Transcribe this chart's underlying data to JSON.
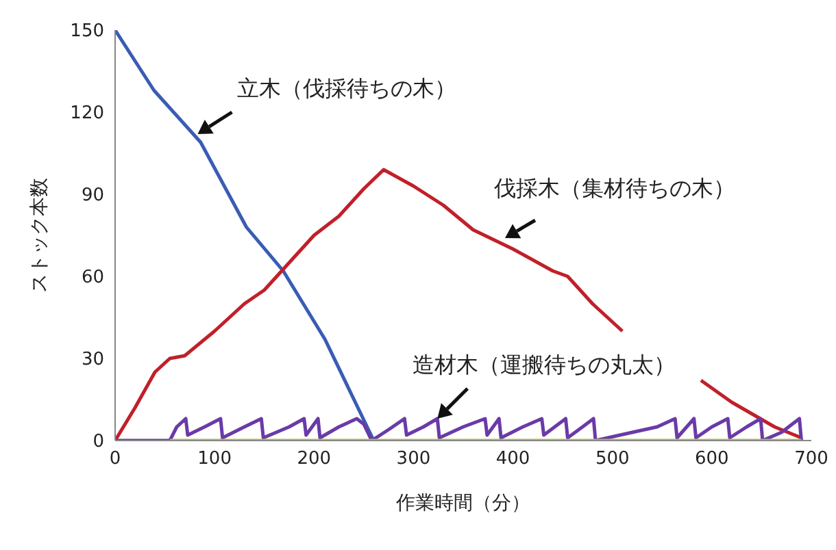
{
  "chart_data": {
    "type": "line",
    "xlabel": "作業時間（分）",
    "ylabel": "ストック本数",
    "xlim": [
      0,
      700
    ],
    "xticks": [
      0,
      100,
      200,
      300,
      400,
      500,
      600,
      700
    ],
    "ylim": [
      0,
      150
    ],
    "yticks": [
      0,
      30,
      60,
      90,
      120,
      150
    ],
    "grid": false,
    "legend": false,
    "marker": "none",
    "line_style": "solid",
    "series": [
      {
        "color": "#3a5cb4",
        "x": [
          0,
          39,
          86,
          132,
          169,
          211,
          260
        ],
        "values": [
          150,
          128,
          109,
          78,
          62,
          37,
          0
        ]
      },
      {
        "color": "#c0202a",
        "x": [
          0,
          20,
          40,
          55,
          70,
          100,
          130,
          150,
          175,
          200,
          225,
          250,
          270,
          300,
          330,
          360,
          400,
          440,
          455,
          480,
          510,
          550,
          589,
          620,
          663,
          690
        ],
        "values": [
          0,
          12,
          25,
          30,
          31,
          40,
          50,
          55,
          65,
          75,
          82,
          92,
          99,
          93,
          86,
          77,
          70,
          62,
          60,
          50,
          40,
          null,
          22,
          14,
          5,
          1
        ]
      },
      {
        "color": "#6a3aa8",
        "x": [
          0,
          55,
          62,
          71,
          73,
          90,
          106,
          108,
          130,
          147,
          149,
          175,
          190,
          192,
          204,
          206,
          225,
          243,
          250,
          258,
          275,
          291,
          293,
          310,
          324,
          326,
          350,
          372,
          374,
          386,
          388,
          410,
          429,
          431,
          453,
          455,
          470,
          481,
          483,
          520,
          545,
          563,
          565,
          582,
          584,
          600,
          616,
          618,
          635,
          649,
          651,
          670,
          688,
          690
        ],
        "values": [
          0,
          0,
          5,
          8,
          2,
          5,
          8,
          1,
          5,
          8,
          1,
          5,
          8,
          2,
          8,
          1,
          5,
          8,
          6,
          0,
          4,
          8,
          2,
          5,
          8,
          1,
          5,
          8,
          2,
          8,
          1,
          5,
          8,
          2,
          8,
          1,
          5,
          8,
          0,
          3,
          5,
          8,
          1,
          8,
          1,
          5,
          8,
          1,
          5,
          8,
          0,
          3,
          8,
          0
        ]
      },
      {
        "color": "#a8c040",
        "x": [
          55,
          690
        ],
        "values": [
          0,
          0
        ]
      }
    ],
    "annotations": [
      {
        "text": "立木（伐採待ちの木）",
        "x": 83,
        "y": 112
      },
      {
        "text": "伐採木（集材待ちの木）",
        "x": 392,
        "y": 74
      },
      {
        "text": "造材木（運搬待ちの丸太）",
        "x": 324,
        "y": 8
      }
    ]
  }
}
